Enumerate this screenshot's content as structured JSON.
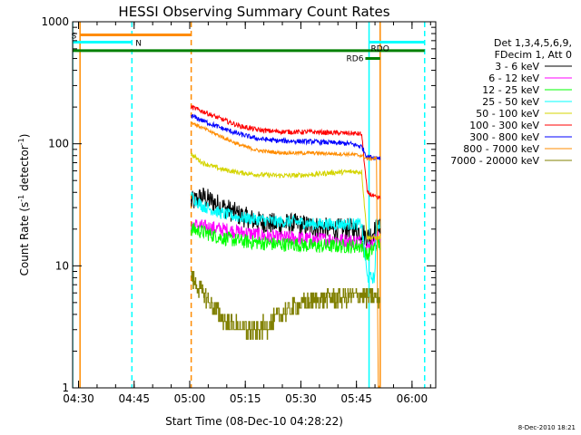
{
  "chart_data": {
    "type": "line",
    "title": "HESSI Observing Summary Count Rates",
    "xlabel": "Start Time (08-Dec-10 04:28:22)",
    "ylabel_main": "Count Rate (s",
    "ylabel_sup1": "-1",
    "ylabel_mid": " detector",
    "ylabel_sup2": "-1",
    "ylabel_end": ")",
    "yscale": "log",
    "ylim": [
      1,
      1000
    ],
    "xlim_minutes": [
      0,
      98
    ],
    "grid": false,
    "legend_position": "right",
    "x_ticks": [
      {
        "label": "04:30",
        "minute": 1.6
      },
      {
        "label": "04:45",
        "minute": 16.6
      },
      {
        "label": "05:00",
        "minute": 31.6
      },
      {
        "label": "05:15",
        "minute": 46.6
      },
      {
        "label": "05:30",
        "minute": 61.6
      },
      {
        "label": "05:45",
        "minute": 76.6
      },
      {
        "label": "06:00",
        "minute": 91.6
      }
    ],
    "y_ticks": [
      {
        "label": "1",
        "value": 1
      },
      {
        "label": "10",
        "value": 10
      },
      {
        "label": "100",
        "value": 100
      },
      {
        "label": "1000",
        "value": 1000
      }
    ],
    "legend_header": [
      "Det 1,3,4,5,6,9,",
      "FDecim 1, Att 0"
    ],
    "data_start_minute": 32,
    "data_end_minute": 83,
    "series": [
      {
        "name": "3 - 6 keV",
        "color": "#000000",
        "noise": 0.09,
        "points": [
          [
            32,
            33
          ],
          [
            35,
            37
          ],
          [
            40,
            31
          ],
          [
            45,
            26
          ],
          [
            50,
            23
          ],
          [
            55,
            22
          ],
          [
            60,
            22
          ],
          [
            65,
            21
          ],
          [
            70,
            20
          ],
          [
            75,
            20
          ],
          [
            78,
            19
          ],
          [
            79.5,
            17
          ],
          [
            82,
            20
          ],
          [
            83,
            20
          ]
        ]
      },
      {
        "name": "6 - 12 keV",
        "color": "#ff00ff",
        "noise": 0.06,
        "points": [
          [
            32,
            22
          ],
          [
            35,
            21
          ],
          [
            40,
            20
          ],
          [
            45,
            19
          ],
          [
            50,
            18
          ],
          [
            55,
            17
          ],
          [
            60,
            17
          ],
          [
            65,
            16.5
          ],
          [
            70,
            16.5
          ],
          [
            75,
            16
          ],
          [
            78,
            16
          ],
          [
            79.5,
            14
          ],
          [
            82,
            17
          ],
          [
            83,
            17
          ]
        ]
      },
      {
        "name": "12 - 25 keV",
        "color": "#00ff00",
        "noise": 0.06,
        "points": [
          [
            32,
            20
          ],
          [
            35,
            19
          ],
          [
            40,
            17
          ],
          [
            45,
            16
          ],
          [
            50,
            15.5
          ],
          [
            55,
            15
          ],
          [
            60,
            15
          ],
          [
            65,
            14.5
          ],
          [
            70,
            14.5
          ],
          [
            75,
            14.5
          ],
          [
            78,
            14.5
          ],
          [
            79.5,
            12
          ],
          [
            82,
            15
          ],
          [
            83,
            15
          ]
        ]
      },
      {
        "name": "25 - 50 keV",
        "color": "#00ffff",
        "noise": 0.05,
        "points": [
          [
            32,
            37
          ],
          [
            35,
            31
          ],
          [
            40,
            27
          ],
          [
            45,
            25
          ],
          [
            50,
            24
          ],
          [
            55,
            23
          ],
          [
            60,
            23
          ],
          [
            65,
            22
          ],
          [
            70,
            22
          ],
          [
            75,
            22
          ],
          [
            78,
            22
          ],
          [
            79.5,
            8
          ],
          [
            81.5,
            8
          ],
          [
            82,
            22
          ],
          [
            83,
            22
          ]
        ]
      },
      {
        "name": "50 - 100 keV",
        "color": "#d4d400",
        "noise": 0.02,
        "points": [
          [
            32,
            82
          ],
          [
            35,
            70
          ],
          [
            40,
            62
          ],
          [
            45,
            58
          ],
          [
            50,
            56
          ],
          [
            55,
            55
          ],
          [
            60,
            55
          ],
          [
            65,
            56
          ],
          [
            70,
            58
          ],
          [
            75,
            59
          ],
          [
            78,
            59
          ],
          [
            79.5,
            17
          ],
          [
            82,
            17
          ],
          [
            83,
            17
          ]
        ]
      },
      {
        "name": "100 - 300 keV",
        "color": "#ff0000",
        "noise": 0.02,
        "points": [
          [
            32,
            200
          ],
          [
            35,
            185
          ],
          [
            40,
            160
          ],
          [
            45,
            140
          ],
          [
            50,
            130
          ],
          [
            55,
            126
          ],
          [
            60,
            125
          ],
          [
            65,
            125
          ],
          [
            70,
            123
          ],
          [
            75,
            122
          ],
          [
            78,
            120
          ],
          [
            79.5,
            40
          ],
          [
            82,
            36
          ],
          [
            83,
            36
          ]
        ]
      },
      {
        "name": "300 - 800 keV",
        "color": "#0000ff",
        "noise": 0.02,
        "points": [
          [
            32,
            170
          ],
          [
            35,
            155
          ],
          [
            40,
            135
          ],
          [
            45,
            120
          ],
          [
            50,
            110
          ],
          [
            55,
            106
          ],
          [
            60,
            105
          ],
          [
            65,
            104
          ],
          [
            70,
            102
          ],
          [
            75,
            100
          ],
          [
            78,
            95
          ],
          [
            79.5,
            78
          ],
          [
            82,
            77
          ],
          [
            83,
            77
          ]
        ]
      },
      {
        "name": "800 - 7000 keV",
        "color": "#ff8c00",
        "noise": 0.015,
        "points": [
          [
            32,
            150
          ],
          [
            35,
            135
          ],
          [
            40,
            115
          ],
          [
            45,
            98
          ],
          [
            50,
            88
          ],
          [
            55,
            85
          ],
          [
            60,
            84
          ],
          [
            65,
            84
          ],
          [
            70,
            83
          ],
          [
            75,
            82
          ],
          [
            78,
            80
          ],
          [
            79.5,
            75
          ],
          [
            82,
            76
          ],
          [
            82.5,
            1
          ],
          [
            83,
            1
          ]
        ]
      },
      {
        "name": "7000 - 20000 keV",
        "color": "#808000",
        "noise": 0.08,
        "step": true,
        "points": [
          [
            32,
            8
          ],
          [
            35,
            6
          ],
          [
            38,
            4.5
          ],
          [
            41,
            3.5
          ],
          [
            44,
            3.2
          ],
          [
            47,
            3.0
          ],
          [
            50,
            3.0
          ],
          [
            53,
            3.3
          ],
          [
            56,
            4
          ],
          [
            60,
            4.6
          ],
          [
            65,
            5.2
          ],
          [
            70,
            5.5
          ],
          [
            75,
            5.6
          ],
          [
            78,
            5.8
          ],
          [
            79.5,
            5.5
          ],
          [
            82,
            5.5
          ],
          [
            83,
            5.5
          ]
        ]
      }
    ],
    "markers": [
      {
        "name": "S",
        "text": "S",
        "color": "#ff8c00",
        "y_value": 780,
        "x_start": 2,
        "x_end": 32
      },
      {
        "name": "N",
        "text": "N",
        "color": "#00ffff",
        "y_value": 680,
        "x_start": 0,
        "x_end": 16
      },
      {
        "name": "SAA",
        "text": "",
        "color": "#008000",
        "y_value": 580,
        "x_start": 0,
        "x_end": 95
      },
      {
        "name": "RDO",
        "text": "RDO",
        "color": "#00ffff",
        "y_value": 680,
        "x_start": 80,
        "x_end": 95
      },
      {
        "name": "RD6",
        "text": "RD6",
        "color": "#008000",
        "y_value": 500,
        "x_start": 79,
        "x_end": 83
      }
    ],
    "vlines": [
      {
        "minute": 0,
        "color": "#00ffff",
        "style": "solid"
      },
      {
        "minute": 2,
        "color": "#ff8c00",
        "style": "solid"
      },
      {
        "minute": 16,
        "color": "#00ffff",
        "style": "dashed"
      },
      {
        "minute": 32,
        "color": "#ff8c00",
        "style": "dashed"
      },
      {
        "minute": 80,
        "color": "#00ffff",
        "style": "solid"
      },
      {
        "minute": 83,
        "color": "#ff8c00",
        "style": "solid"
      },
      {
        "minute": 95,
        "color": "#00ffff",
        "style": "dashed"
      }
    ],
    "footer": "8-Dec-2010 18:21"
  }
}
